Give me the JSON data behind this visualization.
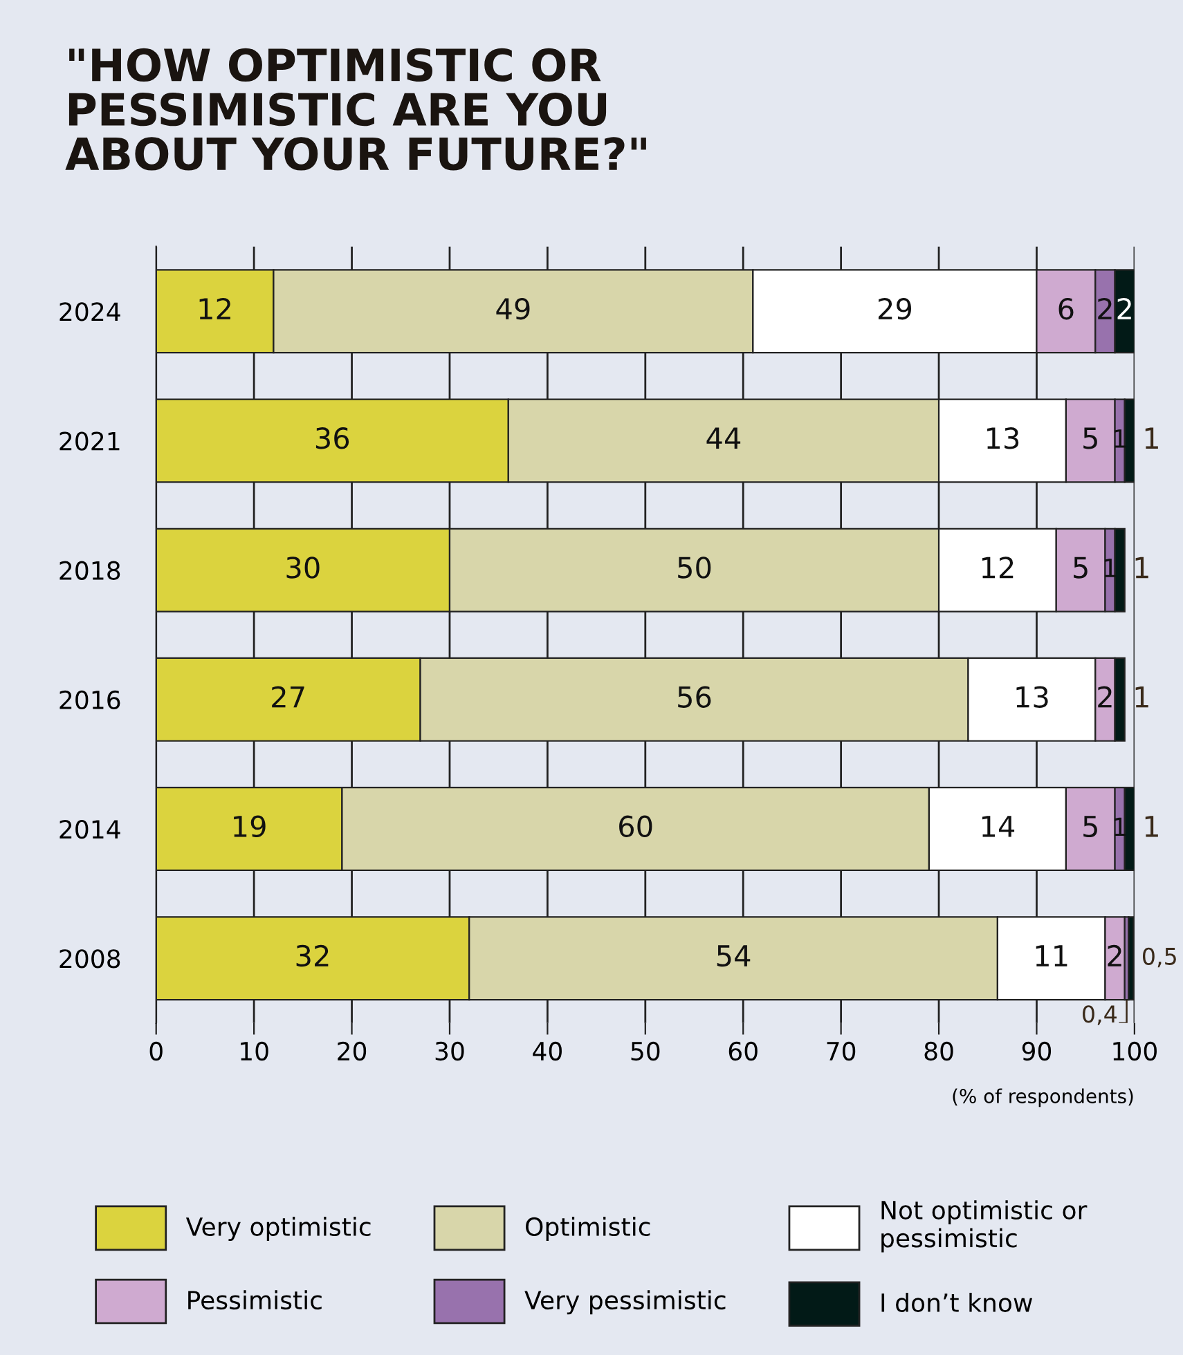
{
  "chart_data": {
    "type": "bar",
    "orientation": "horizontal",
    "stacked": true,
    "title": "\"HOW OPTIMISTIC OR\nPESSIMISTIC ARE YOU\nABOUT YOUR FUTURE?\"",
    "xlabel": "(% of respondents)",
    "categories": [
      "2024",
      "2021",
      "2018",
      "2016",
      "2014",
      "2008"
    ],
    "series": [
      {
        "name": "Very optimistic",
        "color": "#dbd33e",
        "values": [
          12,
          36,
          30,
          27,
          19,
          32
        ]
      },
      {
        "name": "Optimistic",
        "color": "#d8d6aa",
        "values": [
          49,
          44,
          50,
          56,
          60,
          54
        ]
      },
      {
        "name": "Not optimistic or\npessimistic",
        "color": "#ffffff",
        "values": [
          29,
          13,
          12,
          13,
          14,
          11
        ]
      },
      {
        "name": "Pessimistic",
        "color": "#cfaad0",
        "values": [
          6,
          5,
          5,
          2,
          5,
          2
        ]
      },
      {
        "name": "Very pessimistic",
        "color": "#9872ad",
        "values": [
          2,
          1,
          1,
          null,
          1,
          0.4
        ],
        "value_labels": [
          "2",
          "1",
          "1",
          null,
          "1",
          "0,4"
        ]
      },
      {
        "name": "I don’t know",
        "color": "#021a17",
        "values": [
          2,
          1,
          1,
          1,
          1,
          0.5
        ],
        "value_labels": [
          "2",
          "1",
          "1",
          "1",
          "1",
          "0,5"
        ]
      }
    ],
    "data_labels": true,
    "xlim": [
      0,
      100
    ],
    "xticks": [
      0,
      10,
      20,
      30,
      40,
      50,
      60,
      70,
      80,
      90,
      100
    ],
    "grid": "x",
    "legend": "bottom"
  }
}
